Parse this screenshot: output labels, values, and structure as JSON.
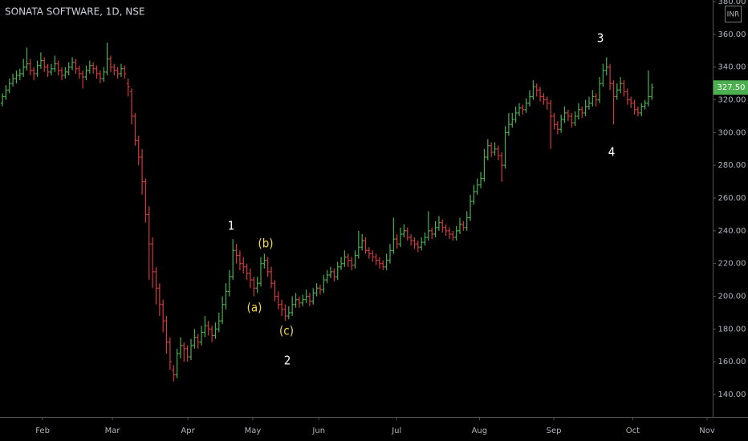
{
  "chart_data": {
    "type": "ohlc",
    "title": "SONATA SOFTWARE, 1D, NSE",
    "currency": "INR",
    "up_color": "#4caf50",
    "down_color": "#d33a3a",
    "last_price": {
      "value": 327.5,
      "label": "327.50"
    },
    "xlim": [
      -0.7,
      203.4
    ],
    "ylim": [
      126.3,
      381
    ],
    "xticks": [
      {
        "value": 11.5,
        "label": "Feb"
      },
      {
        "value": 31.5,
        "label": "Mar"
      },
      {
        "value": 53.1,
        "label": "Apr"
      },
      {
        "value": 71.7,
        "label": "May"
      },
      {
        "value": 90.6,
        "label": "Jun"
      },
      {
        "value": 112.9,
        "label": "Jul"
      },
      {
        "value": 136.6,
        "label": "Aug"
      },
      {
        "value": 157.9,
        "label": "Sep"
      },
      {
        "value": 180.5,
        "label": "Oct"
      },
      {
        "value": 201.8,
        "label": "Nov"
      }
    ],
    "yticks": [
      {
        "value": 140,
        "label": "140.00"
      },
      {
        "value": 160,
        "label": "160.00"
      },
      {
        "value": 180,
        "label": "180.00"
      },
      {
        "value": 200,
        "label": "200.00"
      },
      {
        "value": 220,
        "label": "220.00"
      },
      {
        "value": 240,
        "label": "240.00"
      },
      {
        "value": 260,
        "label": "260.00"
      },
      {
        "value": 280,
        "label": "280.00"
      },
      {
        "value": 300,
        "label": "300.00"
      },
      {
        "value": 320,
        "label": "320.00"
      },
      {
        "value": 340,
        "label": "340.00"
      },
      {
        "value": 360,
        "label": "360.00"
      },
      {
        "value": 380,
        "label": "380.00"
      }
    ],
    "annotations": [
      "1",
      "(b)",
      "(a)",
      "(c)",
      "2",
      "3",
      "4"
    ],
    "ohlc": [
      [
        318,
        324,
        316,
        322
      ],
      [
        322,
        329,
        320,
        326
      ],
      [
        326,
        333,
        324,
        330
      ],
      [
        330,
        336,
        328,
        333
      ],
      [
        333,
        338,
        330,
        335
      ],
      [
        335,
        339,
        332,
        336
      ],
      [
        336,
        345,
        334,
        340
      ],
      [
        340,
        352,
        338,
        342
      ],
      [
        342,
        345,
        335,
        338
      ],
      [
        338,
        340,
        332,
        336
      ],
      [
        336,
        344,
        334,
        341
      ],
      [
        341,
        349,
        339,
        344
      ],
      [
        344,
        346,
        337,
        340
      ],
      [
        340,
        342,
        334,
        337
      ],
      [
        337,
        342,
        335,
        339
      ],
      [
        339,
        347,
        337,
        342
      ],
      [
        342,
        344,
        335,
        338
      ],
      [
        338,
        340,
        332,
        335
      ],
      [
        335,
        340,
        333,
        337
      ],
      [
        337,
        343,
        335,
        340
      ],
      [
        340,
        346,
        338,
        343
      ],
      [
        343,
        345,
        336,
        339
      ],
      [
        339,
        341,
        333,
        336
      ],
      [
        336,
        338,
        327,
        334
      ],
      [
        334,
        341,
        332,
        338
      ],
      [
        338,
        344,
        336,
        341
      ],
      [
        341,
        343,
        336,
        339
      ],
      [
        339,
        341,
        333,
        336
      ],
      [
        336,
        338,
        330,
        333
      ],
      [
        333,
        340,
        331,
        337
      ],
      [
        337,
        355,
        335,
        345
      ],
      [
        345,
        347,
        337,
        340
      ],
      [
        340,
        342,
        335,
        338
      ],
      [
        338,
        340,
        333,
        336
      ],
      [
        336,
        342,
        334,
        339
      ],
      [
        339,
        341,
        333,
        336
      ],
      [
        330,
        333,
        322,
        328
      ],
      [
        325,
        327,
        305,
        310
      ],
      [
        310,
        312,
        292,
        295
      ],
      [
        295,
        298,
        280,
        285
      ],
      [
        285,
        290,
        262,
        270
      ],
      [
        270,
        272,
        245,
        250
      ],
      [
        250,
        255,
        210,
        232
      ],
      [
        232,
        236,
        205,
        215
      ],
      [
        215,
        218,
        195,
        205
      ],
      [
        205,
        208,
        188,
        195
      ],
      [
        195,
        198,
        178,
        185
      ],
      [
        185,
        188,
        165,
        172
      ],
      [
        172,
        175,
        155,
        160
      ],
      [
        155,
        158,
        148,
        152
      ],
      [
        152,
        168,
        150,
        165
      ],
      [
        165,
        175,
        162,
        170
      ],
      [
        170,
        172,
        160,
        168
      ],
      [
        168,
        170,
        160,
        163
      ],
      [
        163,
        174,
        161,
        170
      ],
      [
        170,
        180,
        168,
        175
      ],
      [
        175,
        177,
        168,
        172
      ],
      [
        172,
        182,
        170,
        178
      ],
      [
        178,
        188,
        175,
        182
      ],
      [
        182,
        185,
        176,
        180
      ],
      [
        180,
        182,
        172,
        176
      ],
      [
        176,
        184,
        174,
        180
      ],
      [
        180,
        190,
        178,
        185
      ],
      [
        185,
        200,
        183,
        195
      ],
      [
        195,
        208,
        192,
        203
      ],
      [
        203,
        216,
        200,
        212
      ],
      [
        212,
        235,
        210,
        228
      ],
      [
        228,
        232,
        220,
        225
      ],
      [
        225,
        228,
        216,
        220
      ],
      [
        220,
        224,
        214,
        218
      ],
      [
        218,
        220,
        210,
        214
      ],
      [
        214,
        217,
        205,
        210
      ],
      [
        210,
        212,
        200,
        205
      ],
      [
        205,
        212,
        202,
        208
      ],
      [
        208,
        224,
        206,
        220
      ],
      [
        220,
        226,
        217,
        222
      ],
      [
        222,
        224,
        212,
        215
      ],
      [
        215,
        218,
        205,
        208
      ],
      [
        208,
        210,
        197,
        200
      ],
      [
        200,
        203,
        192,
        195
      ],
      [
        195,
        198,
        188,
        192
      ],
      [
        192,
        195,
        185,
        188
      ],
      [
        188,
        194,
        186,
        190
      ],
      [
        190,
        200,
        188,
        195
      ],
      [
        195,
        202,
        193,
        198
      ],
      [
        198,
        200,
        193,
        196
      ],
      [
        196,
        201,
        194,
        198
      ],
      [
        198,
        204,
        196,
        200
      ],
      [
        200,
        202,
        194,
        197
      ],
      [
        197,
        205,
        195,
        202
      ],
      [
        202,
        208,
        200,
        205
      ],
      [
        205,
        207,
        201,
        204
      ],
      [
        204,
        213,
        202,
        210
      ],
      [
        210,
        216,
        208,
        213
      ],
      [
        213,
        218,
        211,
        215
      ],
      [
        215,
        217,
        209,
        212
      ],
      [
        212,
        221,
        210,
        218
      ],
      [
        218,
        224,
        216,
        220
      ],
      [
        220,
        228,
        218,
        224
      ],
      [
        224,
        226,
        218,
        222
      ],
      [
        222,
        224,
        216,
        219
      ],
      [
        219,
        228,
        217,
        225
      ],
      [
        225,
        240,
        223,
        230
      ],
      [
        230,
        238,
        228,
        234
      ],
      [
        234,
        236,
        226,
        228
      ],
      [
        228,
        230,
        223,
        226
      ],
      [
        226,
        228,
        221,
        224
      ],
      [
        224,
        226,
        219,
        222
      ],
      [
        222,
        224,
        217,
        220
      ],
      [
        220,
        222,
        216,
        218
      ],
      [
        218,
        226,
        216,
        222
      ],
      [
        222,
        232,
        220,
        228
      ],
      [
        228,
        248,
        226,
        235
      ],
      [
        235,
        238,
        229,
        232
      ],
      [
        232,
        242,
        230,
        238
      ],
      [
        238,
        244,
        236,
        240
      ],
      [
        240,
        242,
        234,
        236
      ],
      [
        236,
        238,
        231,
        234
      ],
      [
        234,
        236,
        229,
        232
      ],
      [
        232,
        234,
        227,
        230
      ],
      [
        230,
        236,
        228,
        233
      ],
      [
        233,
        239,
        231,
        236
      ],
      [
        236,
        252,
        234,
        240
      ],
      [
        240,
        242,
        235,
        238
      ],
      [
        238,
        246,
        236,
        242
      ],
      [
        242,
        249,
        240,
        245
      ],
      [
        245,
        247,
        239,
        242
      ],
      [
        242,
        244,
        237,
        240
      ],
      [
        240,
        242,
        235,
        238
      ],
      [
        238,
        240,
        234,
        236
      ],
      [
        236,
        243,
        234,
        240
      ],
      [
        240,
        248,
        238,
        244
      ],
      [
        244,
        246,
        240,
        242
      ],
      [
        242,
        252,
        240,
        248
      ],
      [
        248,
        262,
        246,
        258
      ],
      [
        258,
        268,
        256,
        264
      ],
      [
        264,
        272,
        262,
        268
      ],
      [
        268,
        276,
        266,
        272
      ],
      [
        272,
        290,
        270,
        285
      ],
      [
        285,
        296,
        283,
        292
      ],
      [
        292,
        294,
        285,
        288
      ],
      [
        288,
        294,
        286,
        290
      ],
      [
        290,
        292,
        283,
        286
      ],
      [
        286,
        288,
        270,
        280
      ],
      [
        280,
        304,
        278,
        300
      ],
      [
        300,
        312,
        298,
        305
      ],
      [
        305,
        312,
        303,
        308
      ],
      [
        308,
        316,
        306,
        312
      ],
      [
        312,
        318,
        310,
        315
      ],
      [
        315,
        317,
        311,
        314
      ],
      [
        314,
        321,
        312,
        318
      ],
      [
        318,
        326,
        316,
        322
      ],
      [
        322,
        332,
        320,
        328
      ],
      [
        328,
        330,
        322,
        326
      ],
      [
        326,
        328,
        319,
        322
      ],
      [
        322,
        324,
        317,
        320
      ],
      [
        320,
        322,
        314,
        318
      ],
      [
        318,
        320,
        290,
        310
      ],
      [
        310,
        312,
        302,
        305
      ],
      [
        305,
        307,
        299,
        302
      ],
      [
        302,
        311,
        300,
        308
      ],
      [
        308,
        316,
        306,
        312
      ],
      [
        312,
        314,
        307,
        310
      ],
      [
        310,
        312,
        303,
        306
      ],
      [
        306,
        313,
        304,
        310
      ],
      [
        310,
        318,
        308,
        314
      ],
      [
        314,
        316,
        309,
        312
      ],
      [
        312,
        320,
        310,
        316
      ],
      [
        316,
        322,
        314,
        318
      ],
      [
        318,
        326,
        316,
        322
      ],
      [
        322,
        324,
        316,
        320
      ],
      [
        320,
        334,
        318,
        330
      ],
      [
        330,
        342,
        328,
        338
      ],
      [
        338,
        346,
        335,
        340
      ],
      [
        340,
        342,
        326,
        330
      ],
      [
        330,
        332,
        305,
        322
      ],
      [
        322,
        330,
        320,
        326
      ],
      [
        326,
        334,
        324,
        330
      ],
      [
        330,
        332,
        322,
        325
      ],
      [
        325,
        327,
        317,
        320
      ],
      [
        320,
        322,
        315,
        318
      ],
      [
        318,
        320,
        311,
        314
      ],
      [
        314,
        316,
        310,
        312
      ],
      [
        312,
        318,
        310,
        316
      ],
      [
        316,
        320,
        314,
        318
      ],
      [
        318,
        338,
        316,
        322
      ],
      [
        322,
        330,
        320,
        327.5
      ]
    ]
  }
}
